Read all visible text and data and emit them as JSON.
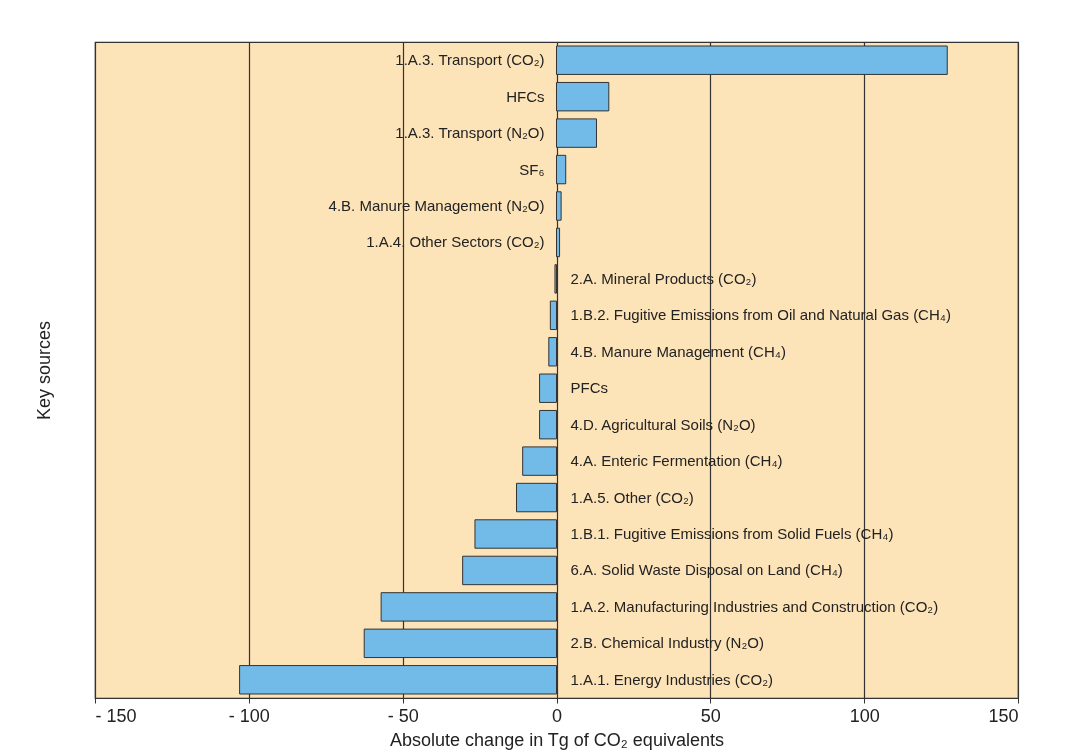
{
  "chart_data": {
    "type": "bar",
    "orientation": "horizontal",
    "xlabel": "Absolute change in Tg of CO₂ equivalents",
    "ylabel": "Key sources",
    "categories": [
      "1.A.3.  Transport (CO₂)",
      "HFCs",
      "1.A.3.  Transport (N₂O)",
      "SF₆",
      "4.B.  Manure Management (N₂O)",
      "1.A.4.  Other Sectors (CO₂)",
      "2.A.  Mineral Products (CO₂)",
      "1.B.2.  Fugitive Emissions from Oil and Natural Gas (CH₄)",
      "4.B.  Manure Management (CH₄)",
      "PFCs",
      "4.D.  Agricultural Soils (N₂O)",
      "4.A.  Enteric Fermentation (CH₄)",
      "1.A.5.  Other (CO₂)",
      "1.B.1.  Fugitive Emissions from Solid Fuels (CH₄)",
      "6.A.  Solid Waste Disposal on Land (CH₄)",
      "1.A.2.  Manufacturing Industries and Construction (CO₂)",
      "2.B.  Chemical Industry (N₂O)",
      "1.A.1.  Energy Industries (CO₂)"
    ],
    "values": [
      127,
      17,
      13,
      3,
      1.5,
      1,
      -0.5,
      -2,
      -2.5,
      -5.5,
      -5.5,
      -11,
      -13,
      -26.5,
      -30.5,
      -57,
      -62.5,
      -103
    ],
    "color": "#72bbe8",
    "xlim": [
      -150,
      150
    ],
    "xticks": [
      {
        "value": -150,
        "label": "- 150"
      },
      {
        "value": -100,
        "label": "- 100"
      },
      {
        "value": -50,
        "label": "- 50"
      },
      0,
      50,
      100,
      150
    ],
    "grid": "x"
  }
}
